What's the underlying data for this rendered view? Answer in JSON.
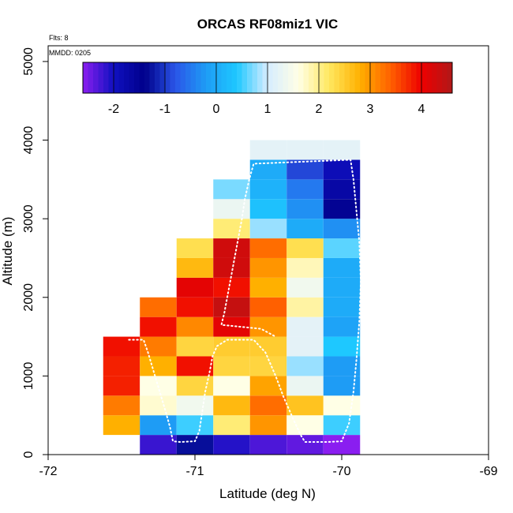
{
  "chart_data": {
    "type": "heatmap",
    "title": "ORCAS RF08miz1 VIC",
    "xlabel": "Latitude (deg N)",
    "ylabel": "Altitude (m)",
    "xlim": [
      -72,
      -69
    ],
    "ylim": [
      0,
      5200
    ],
    "x_ticks": [
      -72,
      -71,
      -70,
      -69
    ],
    "y_ticks": [
      0,
      1000,
      2000,
      3000,
      4000,
      5000
    ],
    "notes": [
      "Flts: 8",
      "MMDD: 0205"
    ],
    "colorbar": {
      "range": [
        -2.6,
        4.6
      ],
      "ticks": [
        -2,
        -1,
        0,
        1,
        2,
        3,
        4
      ],
      "stops": [
        "#8a1ef0",
        "#1010c0",
        "#00008a",
        "#2a55e8",
        "#1e9cf5",
        "#1ec8ff",
        "#d6ecff",
        "#ffffe6",
        "#ffe860",
        "#ffb000",
        "#ff6000",
        "#ee0000",
        "#b01818"
      ],
      "position": "top"
    },
    "x_bin_width": 0.25,
    "y_bin_height": 250,
    "cells": [
      {
        "x": -71.5,
        "y": 250,
        "v": 2.8
      },
      {
        "x": -71.5,
        "y": 500,
        "v": 3.2
      },
      {
        "x": -71.5,
        "y": 750,
        "v": 3.8
      },
      {
        "x": -71.5,
        "y": 1000,
        "v": 3.8
      },
      {
        "x": -71.5,
        "y": 1250,
        "v": 3.9
      },
      {
        "x": -71.25,
        "y": 0,
        "v": -2.2
      },
      {
        "x": -71.25,
        "y": 250,
        "v": -0.2
      },
      {
        "x": -71.25,
        "y": 500,
        "v": 1.7
      },
      {
        "x": -71.25,
        "y": 750,
        "v": 1.6
      },
      {
        "x": -71.25,
        "y": 1000,
        "v": 2.8
      },
      {
        "x": -71.25,
        "y": 1250,
        "v": 3.2
      },
      {
        "x": -71.25,
        "y": 1500,
        "v": 3.9
      },
      {
        "x": -71.25,
        "y": 1750,
        "v": 3.3
      },
      {
        "x": -71.0,
        "y": 0,
        "v": -1.3
      },
      {
        "x": -71.0,
        "y": 250,
        "v": 0.5
      },
      {
        "x": -71.0,
        "y": 500,
        "v": 1.4
      },
      {
        "x": -71.0,
        "y": 750,
        "v": 2.4
      },
      {
        "x": -71.0,
        "y": 1000,
        "v": 3.9
      },
      {
        "x": -71.0,
        "y": 1250,
        "v": 2.4
      },
      {
        "x": -71.0,
        "y": 1500,
        "v": 3.1
      },
      {
        "x": -71.0,
        "y": 1750,
        "v": 3.9
      },
      {
        "x": -71.0,
        "y": 2000,
        "v": 4.1
      },
      {
        "x": -71.0,
        "y": 2250,
        "v": 2.7
      },
      {
        "x": -71.0,
        "y": 2500,
        "v": 2.3
      },
      {
        "x": -70.75,
        "y": 0,
        "v": -2.1
      },
      {
        "x": -70.75,
        "y": 250,
        "v": 2.1
      },
      {
        "x": -70.75,
        "y": 500,
        "v": 2.7
      },
      {
        "x": -70.75,
        "y": 750,
        "v": 1.6
      },
      {
        "x": -70.75,
        "y": 1000,
        "v": 2.4
      },
      {
        "x": -70.75,
        "y": 1250,
        "v": 2.5
      },
      {
        "x": -70.75,
        "y": 1500,
        "v": 4.1
      },
      {
        "x": -70.75,
        "y": 1750,
        "v": 4.4
      },
      {
        "x": -70.75,
        "y": 2000,
        "v": 3.9
      },
      {
        "x": -70.75,
        "y": 2250,
        "v": 4.3
      },
      {
        "x": -70.75,
        "y": 2500,
        "v": 4.3
      },
      {
        "x": -70.75,
        "y": 2750,
        "v": 2.1
      },
      {
        "x": -70.75,
        "y": 3000,
        "v": 1.3
      },
      {
        "x": -70.75,
        "y": 3250,
        "v": 0.7
      },
      {
        "x": -70.5,
        "y": 0,
        "v": -2.3
      },
      {
        "x": -70.5,
        "y": 250,
        "v": 3.0
      },
      {
        "x": -70.5,
        "y": 500,
        "v": 3.3
      },
      {
        "x": -70.5,
        "y": 750,
        "v": 2.9
      },
      {
        "x": -70.5,
        "y": 1000,
        "v": 2.4
      },
      {
        "x": -70.5,
        "y": 1250,
        "v": 2.5
      },
      {
        "x": -70.5,
        "y": 1500,
        "v": 3.0
      },
      {
        "x": -70.5,
        "y": 1750,
        "v": 3.4
      },
      {
        "x": -70.5,
        "y": 2000,
        "v": 2.8
      },
      {
        "x": -70.5,
        "y": 2250,
        "v": 3.0
      },
      {
        "x": -70.5,
        "y": 2500,
        "v": 3.3
      },
      {
        "x": -70.5,
        "y": 2750,
        "v": 0.8
      },
      {
        "x": -70.5,
        "y": 3000,
        "v": 0.3
      },
      {
        "x": -70.5,
        "y": 3250,
        "v": 0.1
      },
      {
        "x": -70.5,
        "y": 3500,
        "v": 0.0
      },
      {
        "x": -70.5,
        "y": 3750,
        "v": 1.2
      },
      {
        "x": -70.25,
        "y": 0,
        "v": -2.4
      },
      {
        "x": -70.25,
        "y": 250,
        "v": 1.6
      },
      {
        "x": -70.25,
        "y": 500,
        "v": 2.6
      },
      {
        "x": -70.25,
        "y": 750,
        "v": 1.3
      },
      {
        "x": -70.25,
        "y": 1000,
        "v": 0.8
      },
      {
        "x": -70.25,
        "y": 1250,
        "v": 1.2
      },
      {
        "x": -70.25,
        "y": 1500,
        "v": 1.2
      },
      {
        "x": -70.25,
        "y": 1750,
        "v": 1.9
      },
      {
        "x": -70.25,
        "y": 2000,
        "v": 1.4
      },
      {
        "x": -70.25,
        "y": 2250,
        "v": 1.8
      },
      {
        "x": -70.25,
        "y": 2500,
        "v": 2.3
      },
      {
        "x": -70.25,
        "y": 2750,
        "v": 0.0
      },
      {
        "x": -70.25,
        "y": 3000,
        "v": -0.3
      },
      {
        "x": -70.25,
        "y": 3250,
        "v": -0.5
      },
      {
        "x": -70.25,
        "y": 3500,
        "v": -0.9
      },
      {
        "x": -70.25,
        "y": 3750,
        "v": 1.2
      },
      {
        "x": -70.0,
        "y": 0,
        "v": -2.6
      },
      {
        "x": -70.0,
        "y": 250,
        "v": 0.5
      },
      {
        "x": -70.0,
        "y": 500,
        "v": 1.6
      },
      {
        "x": -70.0,
        "y": 750,
        "v": -0.2
      },
      {
        "x": -70.0,
        "y": 1000,
        "v": -0.2
      },
      {
        "x": -70.0,
        "y": 1250,
        "v": 0.4
      },
      {
        "x": -70.0,
        "y": 1500,
        "v": -0.1
      },
      {
        "x": -70.0,
        "y": 1750,
        "v": 0.0
      },
      {
        "x": -70.0,
        "y": 2000,
        "v": 0.0
      },
      {
        "x": -70.0,
        "y": 2250,
        "v": 0.0
      },
      {
        "x": -70.0,
        "y": 2500,
        "v": 0.6
      },
      {
        "x": -70.0,
        "y": 2750,
        "v": -0.3
      },
      {
        "x": -70.0,
        "y": 3000,
        "v": -1.5
      },
      {
        "x": -70.0,
        "y": 3250,
        "v": -1.7
      },
      {
        "x": -70.0,
        "y": 3500,
        "v": -1.9
      },
      {
        "x": -70.0,
        "y": 3750,
        "v": 1.2
      }
    ],
    "track": [
      [
        -71.45,
        1460
      ],
      [
        -71.35,
        1460
      ],
      [
        -71.32,
        1300
      ],
      [
        -71.28,
        1050
      ],
      [
        -71.24,
        800
      ],
      [
        -71.2,
        550
      ],
      [
        -71.17,
        350
      ],
      [
        -71.15,
        170
      ],
      [
        -71.1,
        160
      ],
      [
        -71.0,
        170
      ],
      [
        -70.97,
        300
      ],
      [
        -70.95,
        550
      ],
      [
        -70.93,
        800
      ],
      [
        -70.9,
        1050
      ],
      [
        -70.88,
        1250
      ],
      [
        -70.85,
        1380
      ],
      [
        -70.78,
        1460
      ],
      [
        -70.6,
        1460
      ],
      [
        -70.52,
        1300
      ],
      [
        -70.45,
        1000
      ],
      [
        -70.4,
        750
      ],
      [
        -70.33,
        450
      ],
      [
        -70.28,
        250
      ],
      [
        -70.25,
        160
      ],
      [
        -70.1,
        160
      ],
      [
        -70.0,
        170
      ],
      [
        -69.95,
        400
      ],
      [
        -69.92,
        800
      ],
      [
        -69.9,
        1200
      ],
      [
        -69.88,
        1700
      ],
      [
        -69.87,
        2200
      ],
      [
        -69.88,
        2700
      ],
      [
        -69.9,
        3100
      ],
      [
        -69.92,
        3500
      ],
      [
        -69.94,
        3750
      ],
      [
        -70.6,
        3700
      ],
      [
        -70.63,
        3500
      ],
      [
        -70.66,
        3250
      ],
      [
        -70.68,
        3000
      ],
      [
        -70.7,
        2800
      ],
      [
        -70.73,
        2500
      ],
      [
        -70.76,
        2200
      ],
      [
        -70.78,
        2000
      ],
      [
        -70.8,
        1800
      ],
      [
        -70.82,
        1650
      ],
      [
        -70.55,
        1600
      ],
      [
        -70.45,
        1500
      ]
    ]
  }
}
